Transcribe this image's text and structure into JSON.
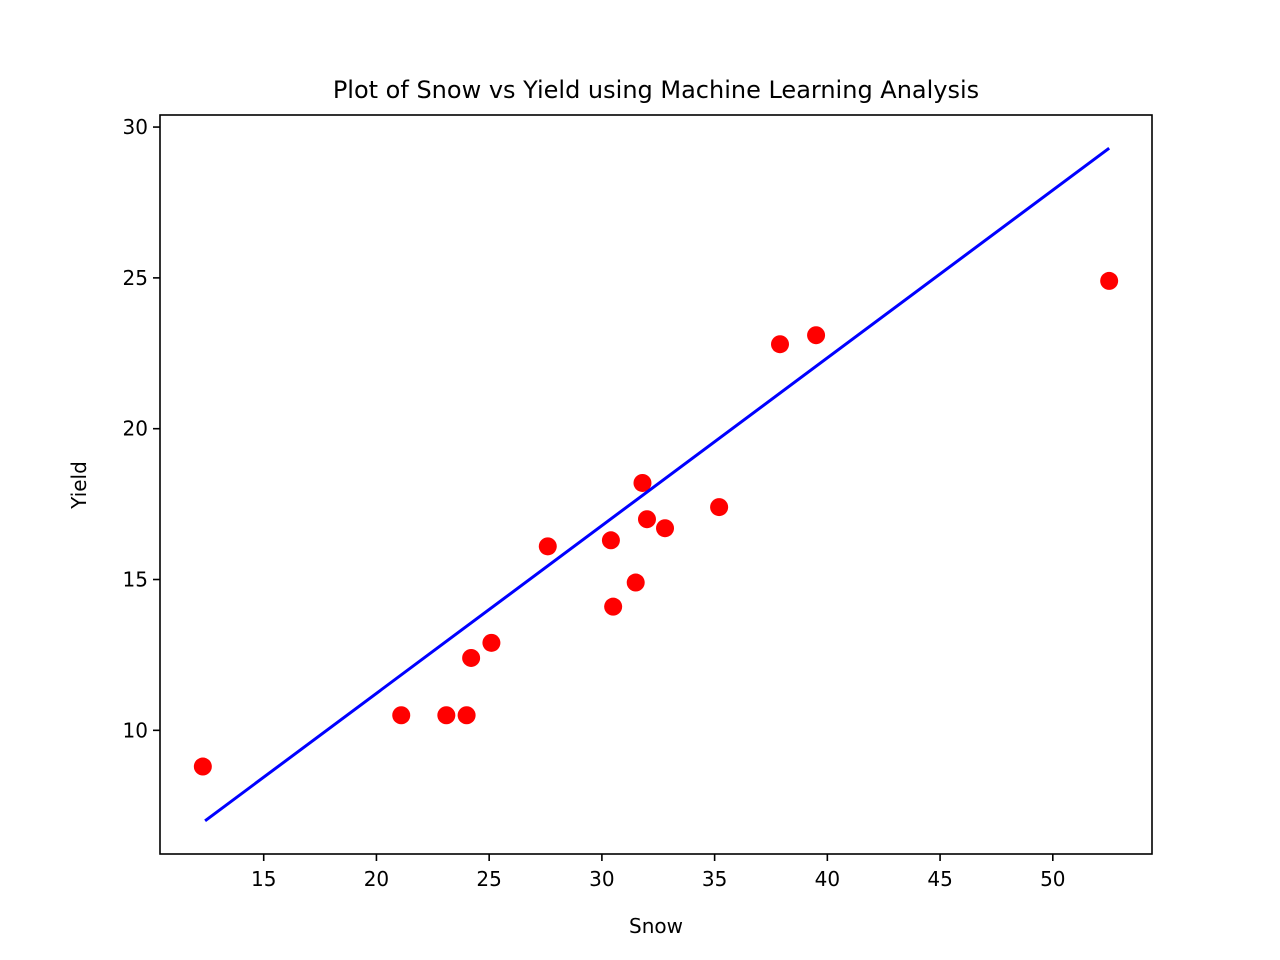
{
  "chart_data": {
    "type": "scatter",
    "title": "Plot of Snow vs Yield using Machine Learning Analysis",
    "xlabel": "Snow",
    "ylabel": "Yield",
    "xlim": [
      10.4,
      54.4
    ],
    "ylim": [
      5.9,
      30.4
    ],
    "xticks": [
      15,
      20,
      25,
      30,
      35,
      40,
      45,
      50
    ],
    "yticks": [
      10,
      15,
      20,
      25,
      30
    ],
    "grid": false,
    "series": [
      {
        "kind": "scatter",
        "color": "#ff0000",
        "points": [
          {
            "x": 12.3,
            "y": 8.8
          },
          {
            "x": 21.1,
            "y": 10.5
          },
          {
            "x": 23.1,
            "y": 10.5
          },
          {
            "x": 24.0,
            "y": 10.5
          },
          {
            "x": 24.2,
            "y": 12.4
          },
          {
            "x": 25.1,
            "y": 12.9
          },
          {
            "x": 27.6,
            "y": 16.1
          },
          {
            "x": 30.4,
            "y": 16.3
          },
          {
            "x": 30.5,
            "y": 14.1
          },
          {
            "x": 31.5,
            "y": 14.9
          },
          {
            "x": 31.8,
            "y": 18.2
          },
          {
            "x": 32.0,
            "y": 17.0
          },
          {
            "x": 32.8,
            "y": 16.7
          },
          {
            "x": 35.2,
            "y": 17.4
          },
          {
            "x": 37.9,
            "y": 22.8
          },
          {
            "x": 39.5,
            "y": 23.1
          },
          {
            "x": 52.5,
            "y": 24.9
          }
        ]
      },
      {
        "kind": "line",
        "color": "#0000ff",
        "points": [
          {
            "x": 12.4,
            "y": 7.0
          },
          {
            "x": 52.5,
            "y": 29.3
          }
        ]
      }
    ]
  }
}
